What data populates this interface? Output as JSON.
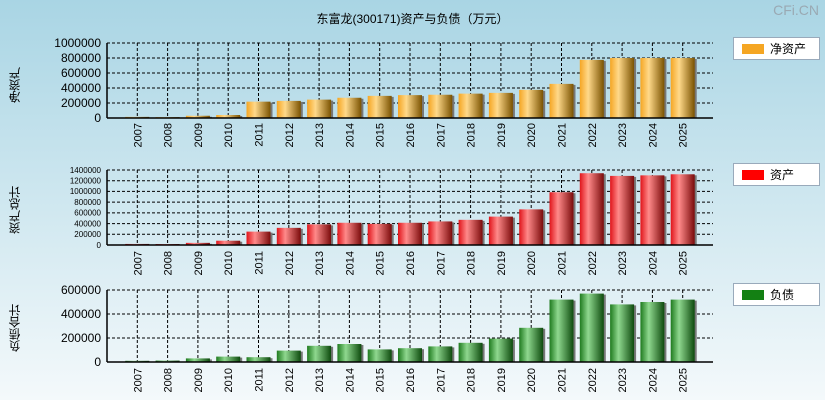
{
  "title": "东富龙(300171)资产与负债（万元）",
  "watermark": "CFi.CN",
  "chart_data": [
    {
      "type": "bar",
      "ylabel": "净资产",
      "legend": "净资产",
      "color": "#f5a623",
      "ylim": [
        0,
        1000000
      ],
      "ticks": [
        0,
        200000,
        400000,
        600000,
        800000,
        1000000
      ],
      "categories": [
        "2007",
        "2008",
        "2009",
        "2010",
        "2011",
        "2012",
        "2013",
        "2014",
        "2015",
        "2016",
        "2017",
        "2018",
        "2019",
        "2020",
        "2021",
        "2022",
        "2023",
        "2024",
        "2025"
      ],
      "values": [
        15000,
        12000,
        30000,
        40000,
        218000,
        228000,
        245000,
        270000,
        295000,
        305000,
        310000,
        325000,
        335000,
        375000,
        455000,
        775000,
        800000,
        800000,
        800000
      ]
    },
    {
      "type": "bar",
      "ylabel": "资产总计",
      "legend": "资产",
      "color": "#e8161c",
      "ylim": [
        0,
        1400000
      ],
      "ticks": [
        0,
        200000,
        400000,
        600000,
        800000,
        1000000,
        1200000,
        1400000
      ],
      "categories": [
        "2007",
        "2008",
        "2009",
        "2010",
        "2011",
        "2012",
        "2013",
        "2014",
        "2015",
        "2016",
        "2017",
        "2018",
        "2019",
        "2020",
        "2021",
        "2022",
        "2023",
        "2024",
        "2025"
      ],
      "values": [
        20000,
        18000,
        40000,
        80000,
        250000,
        320000,
        385000,
        415000,
        395000,
        415000,
        440000,
        470000,
        530000,
        665000,
        985000,
        1340000,
        1290000,
        1300000,
        1320000
      ]
    },
    {
      "type": "bar",
      "ylabel": "负债合计",
      "legend": "负债",
      "color": "#1e8a1e",
      "ylim": [
        0,
        600000
      ],
      "ticks": [
        0,
        200000,
        400000,
        600000
      ],
      "categories": [
        "2007",
        "2008",
        "2009",
        "2010",
        "2011",
        "2012",
        "2013",
        "2014",
        "2015",
        "2016",
        "2017",
        "2018",
        "2019",
        "2020",
        "2021",
        "2022",
        "2023",
        "2024",
        "2025"
      ],
      "values": [
        10000,
        12000,
        30000,
        45000,
        40000,
        95000,
        135000,
        150000,
        105000,
        115000,
        130000,
        160000,
        195000,
        285000,
        520000,
        570000,
        480000,
        500000,
        520000
      ]
    }
  ]
}
